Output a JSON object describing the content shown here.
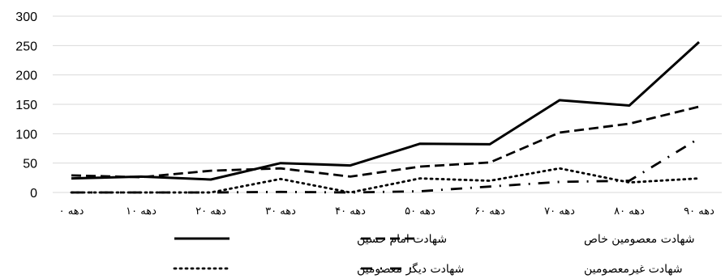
{
  "chart_data": {
    "type": "line",
    "categories": [
      "دهه ۰",
      "دهه ۱۰",
      "دهه ۲۰",
      "دهه ۳۰",
      "دهه ۴۰",
      "دهه ۵۰",
      "دهه ۶۰",
      "دهه ۷۰",
      "دهه ۸۰",
      "دهه ۹۰"
    ],
    "ylim": [
      0,
      300
    ],
    "yticks": [
      0,
      50,
      100,
      150,
      200,
      250,
      300
    ],
    "grid": true,
    "legend_position": "bottom",
    "series": [
      {
        "name": "شهادت امام حسین",
        "style": "solid",
        "values": [
          24,
          27,
          22,
          50,
          46,
          83,
          82,
          157,
          148,
          256
        ]
      },
      {
        "name": "شهادت معصومین خاص",
        "style": "dashed",
        "values": [
          29,
          26,
          37,
          41,
          27,
          44,
          51,
          102,
          117,
          146
        ]
      },
      {
        "name": "شهادت دیگر معصومین",
        "style": "dotted",
        "values": [
          0,
          0,
          0,
          23,
          0,
          24,
          20,
          41,
          17,
          24
        ]
      },
      {
        "name": "شهادت غیرمعصومین",
        "style": "dashdot",
        "values": [
          0,
          0,
          0,
          1,
          0,
          2,
          10,
          18,
          20,
          92
        ]
      }
    ],
    "colors": {
      "line": "#000000",
      "grid": "#d9d9d9"
    }
  }
}
